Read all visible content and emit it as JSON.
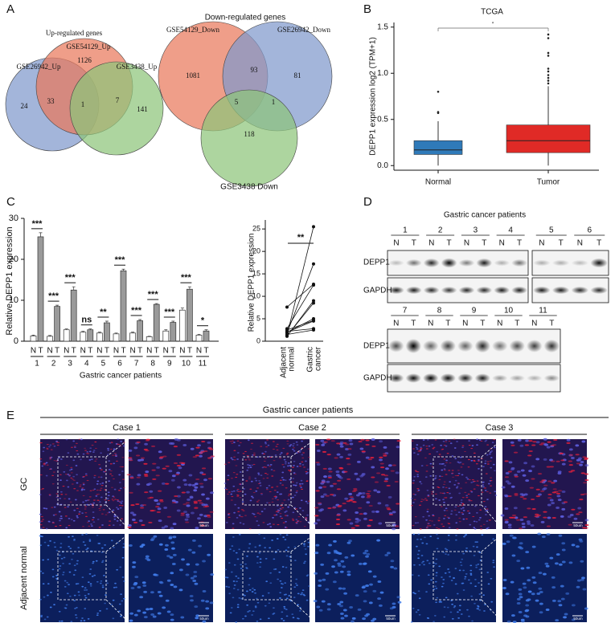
{
  "panel_a": {
    "label": "A",
    "up": {
      "title": "Up-regulated genes",
      "sets": [
        "GSE26942_Up",
        "GSE54129_Up",
        "GSE3438_Up"
      ],
      "regions": [
        24,
        1126,
        141,
        33,
        1,
        7
      ]
    },
    "down": {
      "title": "Down-regulated genes",
      "sets": [
        "GSE54129_Down",
        "GSE26942_Down",
        "GSE3438 Down"
      ],
      "regions": [
        1081,
        81,
        118,
        93,
        5,
        1
      ]
    }
  },
  "panel_b": {
    "label": "B",
    "title": "TCGA",
    "ylabel": "DEPP1 expression log2 (TPM+1)",
    "categories": [
      "Normal",
      "Tumor"
    ],
    "colors": [
      "#2f7ab9",
      "#e02a26"
    ],
    "boxes": [
      {
        "whisker_low": 0,
        "q1": 0.12,
        "median": 0.17,
        "q3": 0.27,
        "whisker_high": 0.48,
        "outliers": [
          0.57,
          0.58,
          0.8
        ]
      },
      {
        "whisker_low": 0,
        "q1": 0.14,
        "median": 0.27,
        "q3": 0.44,
        "whisker_high": 0.86,
        "outliers": [
          0.89,
          0.92,
          0.95,
          0.98,
          1.02,
          1.05,
          1.19,
          1.22,
          1.38,
          1.42
        ]
      }
    ],
    "ylim": [
      -0.05,
      1.55
    ],
    "yticks": [
      {
        "value": 0,
        "label": "0.0"
      },
      {
        "value": 0.5,
        "label": "0.5"
      },
      {
        "value": 1,
        "label": "1.0"
      },
      {
        "value": 1.5,
        "label": "1.5"
      }
    ],
    "significance": "*"
  },
  "panel_c": {
    "label": "C",
    "bar": {
      "ylabel": "Relative DEPP1 expression",
      "xlabel": "Gastric cancer patients",
      "categories": [
        "1",
        "2",
        "3",
        "4",
        "5",
        "6",
        "7",
        "8",
        "9",
        "10",
        "11"
      ],
      "series": [
        {
          "name": "N",
          "color": "#ffffff",
          "values": [
            1.3,
            1.2,
            2.8,
            2.2,
            2,
            1.8,
            2,
            1.1,
            2.5,
            7.6,
            1.5
          ],
          "errors": [
            0.2,
            0.2,
            0.2,
            0.2,
            0.2,
            0.2,
            0.2,
            0.1,
            0.3,
            0.5,
            0.2
          ]
        },
        {
          "name": "T",
          "color": "#9a9a9a",
          "values": [
            25.5,
            8.5,
            12.5,
            2.8,
            4.5,
            17.2,
            5,
            9,
            4.6,
            12.7,
            2.5
          ],
          "errors": [
            1,
            0.3,
            0.8,
            0.2,
            0.4,
            0.4,
            0.3,
            0.2,
            0.3,
            0.6,
            0.3
          ]
        }
      ],
      "significance": [
        "***",
        "***",
        "***",
        "ns",
        "**",
        "***",
        "***",
        "***",
        "***",
        "***",
        "*"
      ],
      "ylim": [
        0,
        30
      ],
      "yticks": [
        0,
        10,
        20,
        30
      ]
    },
    "paired": {
      "ylabel": "Relative DEPP1 expression",
      "categories": [
        [
          "Adjacent",
          "normal"
        ],
        [
          "Gastric",
          "cancer"
        ]
      ],
      "significance": "**",
      "ylim": [
        0,
        27
      ],
      "yticks": [
        0,
        5,
        10,
        15,
        20,
        25
      ]
    }
  },
  "panel_d": {
    "label": "D",
    "title": "Gastric cancer patients",
    "patients": [
      "1",
      "2",
      "3",
      "4",
      "5",
      "6",
      "7",
      "8",
      "9",
      "10",
      "11"
    ],
    "lanes": [
      "N",
      "T"
    ],
    "rows": [
      "DEPP1",
      "GAPDH"
    ]
  },
  "panel_e": {
    "label": "E",
    "title": "Gastric cancer patients",
    "cases": [
      "Case 1",
      "Case 2",
      "Case 3"
    ],
    "rows": [
      "GC",
      "Adjacent normal"
    ],
    "scale_bar": "50um"
  }
}
